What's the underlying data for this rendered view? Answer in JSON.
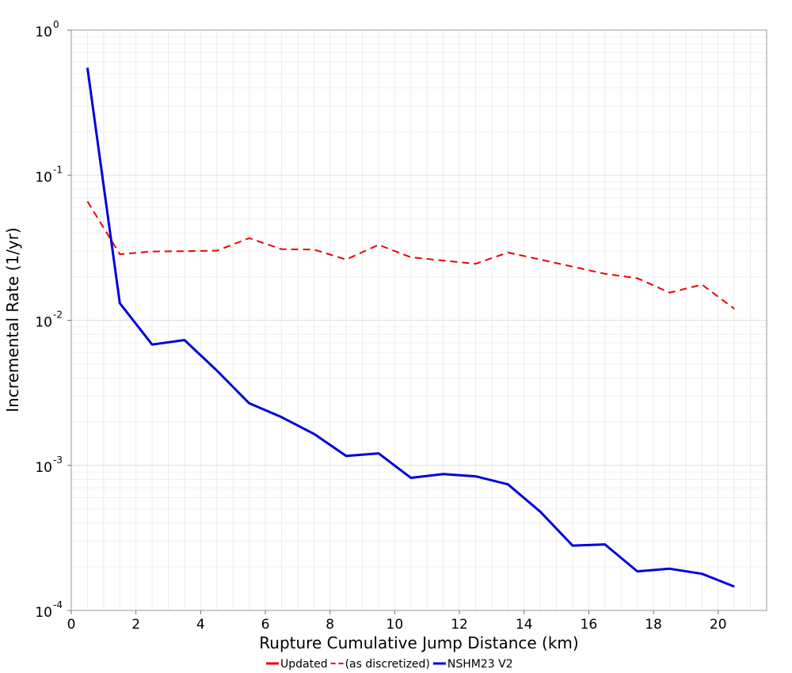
{
  "chart_data": {
    "type": "line",
    "xlabel": "Rupture Cumulative Jump Distance (km)",
    "ylabel": "Incremental Rate (1/yr)",
    "xlim": [
      0,
      21.5
    ],
    "ylim": [
      0.0001,
      1
    ],
    "y_scale": "log",
    "x_ticks": [
      0,
      2,
      4,
      6,
      8,
      10,
      12,
      14,
      16,
      18,
      20
    ],
    "y_ticks": [
      {
        "value": 0.0001,
        "base": "10",
        "exp": "-4"
      },
      {
        "value": 0.001,
        "base": "10",
        "exp": "-3"
      },
      {
        "value": 0.01,
        "base": "10",
        "exp": "-2"
      },
      {
        "value": 0.1,
        "base": "10",
        "exp": "-1"
      },
      {
        "value": 1,
        "base": "10",
        "exp": "0"
      }
    ],
    "grid": true,
    "legend_position": "bottom-center",
    "series": [
      {
        "name": "Updated",
        "color": "#ee0000",
        "style": "solid",
        "x": [],
        "values": []
      },
      {
        "name": "(as discretized)",
        "color": "#ee0000",
        "style": "dashed",
        "x": [
          0.5,
          1.5,
          2.5,
          3.5,
          4.5,
          5.5,
          6.5,
          7.5,
          8.5,
          9.5,
          10.5,
          11.5,
          12.5,
          13.5,
          14.5,
          15.5,
          16.5,
          17.5,
          18.5,
          19.5,
          20.5
        ],
        "values": [
          0.066,
          0.0285,
          0.0298,
          0.0299,
          0.0302,
          0.0368,
          0.0309,
          0.0307,
          0.0262,
          0.0331,
          0.0272,
          0.0258,
          0.0245,
          0.0293,
          0.0262,
          0.0234,
          0.0209,
          0.0195,
          0.0155,
          0.0176,
          0.012
        ]
      },
      {
        "name": "NSHM23 V2",
        "color": "#0000dd",
        "style": "solid",
        "x": [
          0.5,
          1.5,
          2.5,
          3.5,
          4.5,
          5.5,
          6.5,
          7.5,
          8.5,
          9.5,
          10.5,
          11.5,
          12.5,
          13.5,
          14.5,
          15.5,
          16.5,
          17.5,
          18.5,
          19.5,
          20.5
        ],
        "values": [
          0.55,
          0.0131,
          0.0068,
          0.0073,
          0.0045,
          0.00268,
          0.00215,
          0.00165,
          0.00116,
          0.00121,
          0.00082,
          0.00087,
          0.00084,
          0.00074,
          0.00048,
          0.00028,
          0.000285,
          0.000186,
          0.000194,
          0.000179,
          0.000146
        ]
      }
    ]
  }
}
